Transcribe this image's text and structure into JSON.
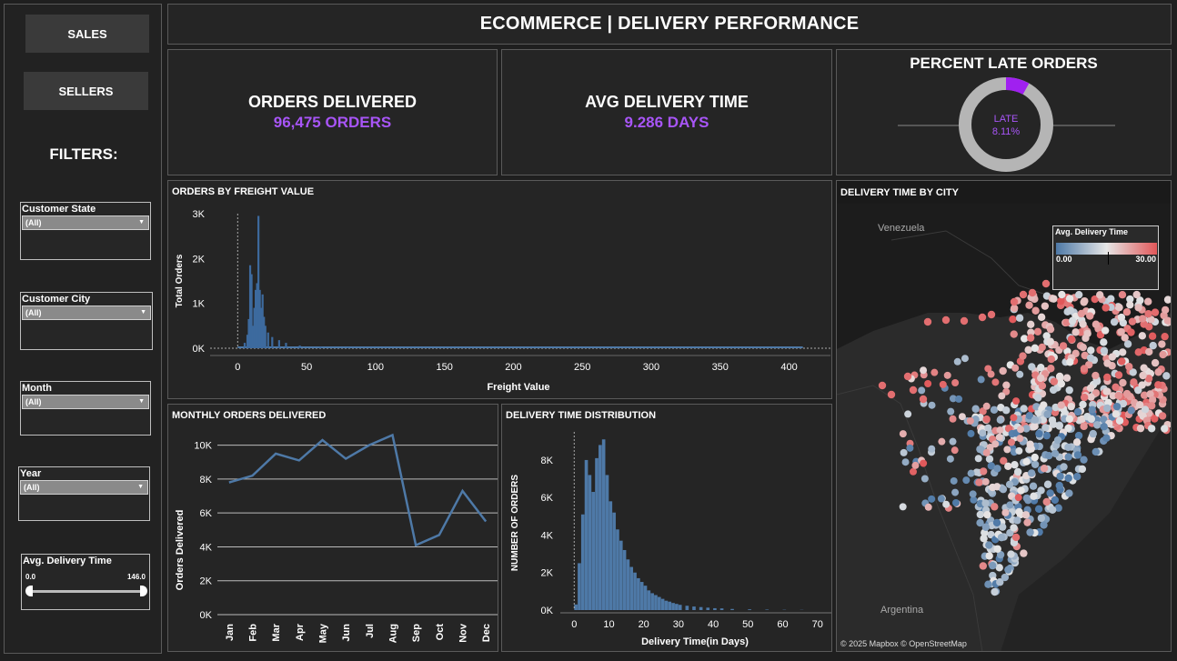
{
  "nav": {
    "sales_label": "SALES",
    "sellers_label": "SELLERS"
  },
  "filters": {
    "title": "FILTERS:",
    "items": [
      {
        "label": "Customer State",
        "value": "(All)"
      },
      {
        "label": "Customer City",
        "value": "(All)"
      },
      {
        "label": "Month",
        "value": "(All)"
      },
      {
        "label": "Year",
        "value": "(All)"
      }
    ],
    "delivery_slider": {
      "label": "Avg. Delivery Time",
      "min": "0.0",
      "max": "146.0",
      "low_fraction": 0,
      "high_fraction": 1
    }
  },
  "header": {
    "title": "ECOMMERCE | DELIVERY PERFORMANCE"
  },
  "kpis": {
    "orders_title": "ORDERS DELIVERED",
    "orders_value": "96,475 ORDERS",
    "avg_title": "AVG DELIVERY TIME",
    "avg_value": "9.286 DAYS"
  },
  "late": {
    "title": "PERCENT LATE ORDERS",
    "label": "LATE",
    "value": "8.11%",
    "percent": 8.11,
    "colors": {
      "late": "#a020f0",
      "on_time": "#b5b5b5"
    }
  },
  "freight": {
    "title": "ORDERS BY FREIGHT VALUE",
    "chart_data": {
      "type": "bar",
      "xlabel": "Freight Value",
      "ylabel": "Total Orders",
      "xlim": [
        -20,
        430
      ],
      "ylim": [
        0,
        3000
      ],
      "xticks": [
        "0",
        "50",
        "100",
        "150",
        "200",
        "250",
        "300",
        "350",
        "400"
      ],
      "yticks": [
        "0K",
        "1K",
        "2K",
        "3K"
      ],
      "x": [
        5,
        7,
        8,
        9,
        10,
        11,
        12,
        13,
        14,
        15,
        16,
        17,
        18,
        19,
        20,
        22,
        25,
        30,
        35,
        45,
        60,
        80
      ],
      "values": [
        120,
        300,
        650,
        1850,
        1650,
        500,
        900,
        1300,
        1450,
        2950,
        1300,
        900,
        1200,
        700,
        500,
        350,
        250,
        180,
        120,
        60,
        30,
        15
      ]
    }
  },
  "monthly": {
    "title": "MONTHLY ORDERS DELIVERED",
    "chart_data": {
      "type": "line",
      "ylabel": "Orders Delivered",
      "categories": [
        "Jan",
        "Feb",
        "Mar",
        "Apr",
        "May",
        "Jun",
        "Jul",
        "Aug",
        "Sep",
        "Oct",
        "Nov",
        "Dec"
      ],
      "values": [
        7800,
        8200,
        9500,
        9100,
        10300,
        9200,
        10000,
        10600,
        4100,
        4700,
        7300,
        5500
      ],
      "ylim": [
        0,
        11000
      ],
      "yticks": [
        "0K",
        "2K",
        "4K",
        "6K",
        "8K",
        "10K"
      ]
    }
  },
  "distribution": {
    "title": "DELIVERY TIME DISTRIBUTION",
    "chart_data": {
      "type": "bar",
      "xlabel": "Delivery Time(in Days)",
      "ylabel": "NUMBER OF ORDERS",
      "xlim": [
        -4,
        74
      ],
      "ylim": [
        0,
        9500
      ],
      "xticks": [
        "0",
        "10",
        "20",
        "30",
        "40",
        "50",
        "60",
        "70"
      ],
      "yticks": [
        "0K",
        "2K",
        "4K",
        "6K",
        "8K"
      ],
      "x": [
        0,
        1,
        2,
        3,
        4,
        5,
        6,
        7,
        8,
        9,
        10,
        11,
        12,
        13,
        14,
        15,
        16,
        17,
        18,
        19,
        20,
        21,
        22,
        23,
        24,
        25,
        26,
        27,
        28,
        29,
        30,
        32,
        34,
        36,
        38,
        40,
        42,
        45,
        50,
        55,
        60,
        65
      ],
      "values": [
        300,
        2500,
        5100,
        8000,
        7200,
        6300,
        8100,
        8800,
        9100,
        7200,
        5800,
        5200,
        4300,
        3700,
        3200,
        2700,
        2300,
        2000,
        1700,
        1500,
        1300,
        1050,
        900,
        800,
        700,
        600,
        500,
        450,
        380,
        330,
        280,
        230,
        190,
        160,
        130,
        100,
        90,
        60,
        40,
        25,
        15,
        10
      ]
    }
  },
  "map": {
    "title": "DELIVERY TIME BY CITY",
    "legend_title": "Avg. Delivery Time",
    "legend_min": "0.00",
    "legend_max": "30.00",
    "label_north": "Venezuela",
    "label_south": "Argentina",
    "attribution": "© 2025 Mapbox  © OpenStreetMap",
    "colors": {
      "low": "#4e79a7",
      "mid": "#e6e6e6",
      "high": "#e15759"
    }
  }
}
